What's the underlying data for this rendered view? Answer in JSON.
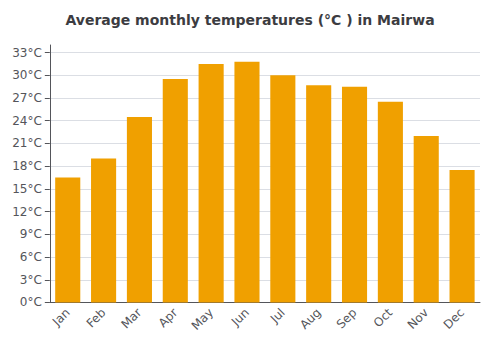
{
  "chart_data": {
    "type": "bar",
    "title": "Average monthly temperatures (°C ) in Mairwa",
    "categories": [
      "Jan",
      "Feb",
      "Mar",
      "Apr",
      "May",
      "Jun",
      "Jul",
      "Aug",
      "Sep",
      "Oct",
      "Nov",
      "Dec"
    ],
    "values": [
      16.5,
      19.0,
      24.5,
      29.5,
      31.5,
      31.8,
      30.0,
      28.7,
      28.5,
      26.5,
      22.0,
      17.5
    ],
    "color": "#F0A000",
    "ylim": [
      0,
      34
    ],
    "yticks": [
      {
        "value": 0,
        "label": "0°C"
      },
      {
        "value": 3,
        "label": "3°C"
      },
      {
        "value": 6,
        "label": "6°C"
      },
      {
        "value": 9,
        "label": "9°C"
      },
      {
        "value": 12,
        "label": "12°C"
      },
      {
        "value": 15,
        "label": "15°C"
      },
      {
        "value": 18,
        "label": "18°C"
      },
      {
        "value": 21,
        "label": "21°C"
      },
      {
        "value": 24,
        "label": "24°C"
      },
      {
        "value": 27,
        "label": "27°C"
      },
      {
        "value": 30,
        "label": "30°C"
      },
      {
        "value": 33,
        "label": "33°C"
      }
    ],
    "grid": true
  }
}
